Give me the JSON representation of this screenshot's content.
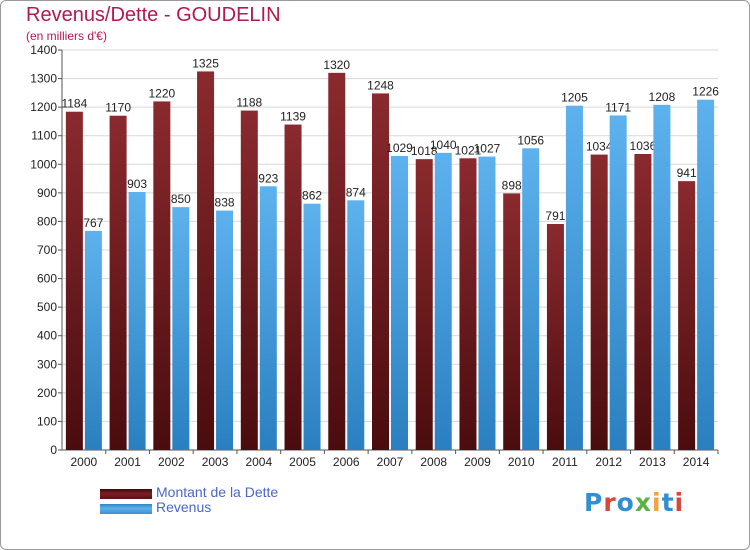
{
  "chart_data": {
    "type": "bar",
    "title": "Revenus/Dette - GOUDELIN",
    "subtitle": "(en milliers d'€)",
    "categories": [
      "2000",
      "2001",
      "2002",
      "2003",
      "2004",
      "2005",
      "2006",
      "2007",
      "2008",
      "2009",
      "2010",
      "2011",
      "2012",
      "2013",
      "2014"
    ],
    "series": [
      {
        "name": "Montant de la Dette",
        "color": "#7a1e22",
        "values": [
          1184,
          1170,
          1220,
          1325,
          1188,
          1139,
          1320,
          1248,
          1018,
          1021,
          898,
          791,
          1034,
          1036,
          941
        ],
        "labels": [
          "1184",
          "1170",
          "1220",
          "1325",
          "1188",
          "1139",
          "1320",
          "1248",
          "1018",
          "1021",
          "898",
          "791",
          "1034",
          "1036",
          "941"
        ]
      },
      {
        "name": "Revenus",
        "color": "#4da3e0",
        "values": [
          767,
          903,
          850,
          838,
          923,
          862,
          874,
          1029,
          1040,
          1027,
          1056,
          1205,
          1171,
          1208,
          1226
        ],
        "labels": [
          "767",
          "903",
          "850",
          "838",
          "923",
          "862",
          "874",
          "1029",
          "1040",
          "1027",
          "1056",
          "1205",
          "1171",
          "1208",
          "1226"
        ]
      }
    ],
    "ylim": [
      0,
      1400
    ],
    "yticks": [
      0,
      100,
      200,
      300,
      400,
      500,
      600,
      700,
      800,
      900,
      1000,
      1100,
      1200,
      1300,
      1400
    ],
    "grid": true,
    "legend_position": "bottom-left"
  },
  "logo": {
    "text": "Proxiti",
    "letters": [
      {
        "ch": "P",
        "color": "#2f8fd1"
      },
      {
        "ch": "r",
        "color": "#d9453c"
      },
      {
        "ch": "o",
        "color": "#2f8fd1"
      },
      {
        "ch": "x",
        "color": "#5ab344"
      },
      {
        "ch": "i",
        "color": "#f2a43a"
      },
      {
        "ch": "t",
        "color": "#2f8fd1"
      },
      {
        "ch": "i",
        "color": "#d9453c"
      }
    ]
  }
}
